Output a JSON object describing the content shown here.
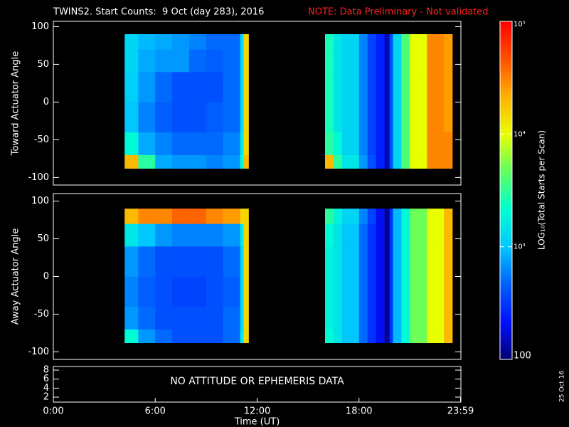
{
  "header": {
    "title": "TWINS2. Start Counts:  9 Oct (day 283), 2016",
    "note": "NOTE: Data Preliminary - Not validated",
    "stamp": "25 Oct 16"
  },
  "colorbar": {
    "label": "LOG₁₀(Total Starts per Scan)",
    "zlim": [
      100,
      100000
    ],
    "log": true,
    "ticks": [
      {
        "value": 100,
        "label": "100"
      },
      {
        "value": 1000,
        "label": "10³"
      },
      {
        "value": 10000,
        "label": "10⁴"
      },
      {
        "value": 100000,
        "label": "10⁵"
      }
    ],
    "colormap": [
      "#000070",
      "#0010ff",
      "#0060ff",
      "#00c8ff",
      "#00ffd0",
      "#60ff60",
      "#e8ff00",
      "#ffb000",
      "#ff5000",
      "#ff0000"
    ]
  },
  "chart_data": [
    {
      "type": "heatmap",
      "ylabel": "Toward Actuator Angle",
      "xlim": [
        0,
        24
      ],
      "ylim": [
        -110,
        107
      ],
      "yticks": [
        -100,
        -50,
        0,
        50,
        100
      ],
      "x": [
        4.2,
        5,
        6,
        7,
        8,
        9,
        10,
        11,
        11.2,
        11.5,
        16,
        16.5,
        17,
        18,
        18.5,
        19,
        19.5,
        19.8,
        20,
        20.5,
        21,
        22,
        23,
        23.5
      ],
      "y": [
        -88,
        -70,
        -40,
        0,
        40,
        70,
        90
      ],
      "values": [
        [
          20000,
          3000,
          800,
          700,
          700,
          600,
          700,
          2000,
          20000,
          null,
          20000,
          3000,
          1500,
          700,
          400,
          250,
          150,
          400,
          1200,
          4000,
          10000,
          30000,
          30000
        ],
        [
          2000,
          800,
          600,
          500,
          500,
          500,
          600,
          1500,
          15000,
          null,
          3000,
          2000,
          1200,
          600,
          350,
          250,
          150,
          400,
          1200,
          4000,
          10000,
          30000,
          30000
        ],
        [
          1000,
          600,
          450,
          400,
          400,
          450,
          500,
          1200,
          15000,
          null,
          2500,
          1500,
          1200,
          600,
          350,
          250,
          150,
          400,
          1200,
          4000,
          10000,
          30000,
          25000
        ],
        [
          1100,
          700,
          500,
          400,
          400,
          400,
          500,
          1200,
          15000,
          null,
          2500,
          1500,
          1200,
          600,
          350,
          250,
          150,
          400,
          1200,
          4000,
          10000,
          30000,
          25000
        ],
        [
          1200,
          800,
          700,
          700,
          500,
          450,
          500,
          1200,
          15000,
          null,
          2500,
          1500,
          1200,
          600,
          350,
          250,
          150,
          400,
          1200,
          4000,
          10000,
          30000,
          25000
        ],
        [
          1200,
          900,
          800,
          700,
          600,
          500,
          500,
          1200,
          15000,
          null,
          2500,
          1500,
          1200,
          600,
          350,
          250,
          150,
          400,
          1200,
          4000,
          10000,
          30000,
          25000
        ]
      ]
    },
    {
      "type": "heatmap",
      "ylabel": "Away Actuator Angle",
      "xlim": [
        0,
        24
      ],
      "ylim": [
        -110,
        110
      ],
      "yticks": [
        -100,
        -50,
        0,
        50,
        100
      ],
      "x": [
        4.2,
        5,
        6,
        7,
        8,
        9,
        10,
        11,
        11.2,
        11.5,
        16,
        16.5,
        17,
        18,
        18.5,
        19,
        19.5,
        19.8,
        20,
        20.5,
        21,
        22,
        23,
        23.5
      ],
      "y": [
        -88,
        -70,
        -40,
        0,
        40,
        70,
        90
      ],
      "values": [
        [
          2000,
          700,
          500,
          400,
          400,
          400,
          500,
          1500,
          15000,
          null,
          2000,
          1500,
          1000,
          500,
          300,
          200,
          120,
          300,
          900,
          2000,
          5000,
          10000,
          20000
        ],
        [
          700,
          500,
          400,
          400,
          400,
          400,
          500,
          1200,
          15000,
          null,
          1800,
          1500,
          1000,
          500,
          300,
          200,
          120,
          300,
          900,
          2000,
          5000,
          10000,
          20000
        ],
        [
          600,
          450,
          400,
          350,
          350,
          400,
          450,
          1200,
          15000,
          null,
          1800,
          1500,
          1000,
          500,
          300,
          200,
          120,
          300,
          900,
          2000,
          5000,
          10000,
          20000
        ],
        [
          700,
          500,
          400,
          400,
          400,
          400,
          500,
          1200,
          15000,
          null,
          1800,
          1500,
          1000,
          500,
          300,
          200,
          120,
          300,
          900,
          2000,
          5000,
          10000,
          20000
        ],
        [
          1500,
          1000,
          700,
          600,
          600,
          600,
          700,
          1500,
          15000,
          null,
          2000,
          1500,
          1000,
          500,
          300,
          200,
          120,
          300,
          900,
          2000,
          5000,
          10000,
          20000
        ],
        [
          20000,
          30000,
          30000,
          40000,
          40000,
          30000,
          25000,
          15000,
          15000,
          null,
          3000,
          1800,
          1200,
          600,
          350,
          200,
          120,
          300,
          900,
          2000,
          5000,
          10000,
          20000
        ]
      ]
    },
    {
      "type": "empty",
      "annotation": "NO ATTITUDE OR EPHEMERIS DATA",
      "xlabel": "Time (UT)",
      "xlim": [
        0,
        24
      ],
      "ylim": [
        0.9,
        8.8
      ],
      "yticks": [
        2,
        4,
        6,
        8
      ],
      "xticks": [
        {
          "value": 0,
          "label": "0:00"
        },
        {
          "value": 6,
          "label": "6:00"
        },
        {
          "value": 12,
          "label": "12:00"
        },
        {
          "value": 18,
          "label": "18:00"
        },
        {
          "value": 23.98,
          "label": "23:59"
        }
      ]
    }
  ]
}
